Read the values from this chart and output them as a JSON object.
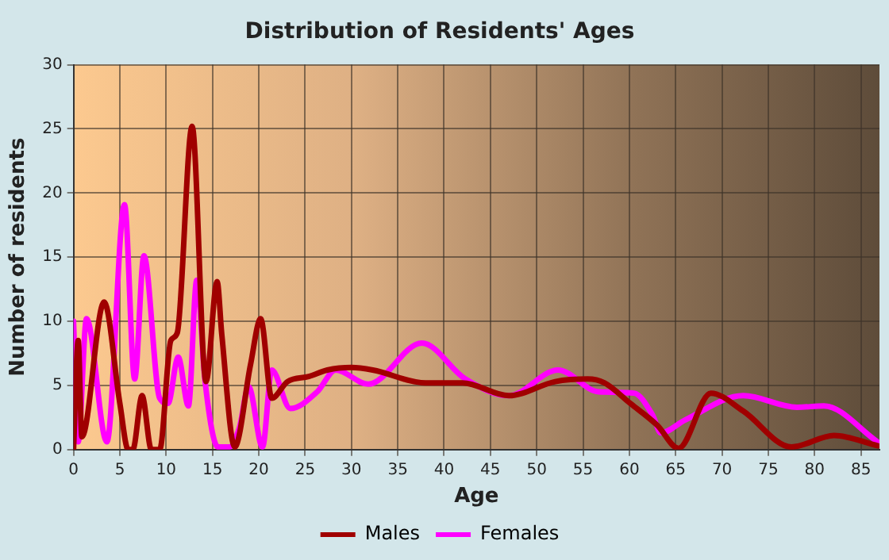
{
  "chart_data": {
    "type": "line",
    "title": "Distribution of Residents' Ages",
    "xlabel": "Age",
    "ylabel": "Number of residents",
    "xlim": [
      0,
      87
    ],
    "xticks": [
      0,
      5,
      10,
      15,
      20,
      25,
      30,
      35,
      40,
      45,
      50,
      55,
      60,
      65,
      70,
      75,
      80,
      85
    ],
    "ylim": [
      0,
      30
    ],
    "yticks": [
      0,
      5,
      10,
      15,
      20,
      25,
      30
    ],
    "grid": true,
    "legend": "bottom",
    "marker": "none",
    "line_style": "solid",
    "series": [
      {
        "name": "Males",
        "color": "#a00000",
        "x": [
          0,
          0.5,
          0.9,
          3.3,
          5,
          5.9,
          6.4,
          7.4,
          8.4,
          9.3,
          10.5,
          11.2,
          12.8,
          14.3,
          15.5,
          16,
          17.4,
          19.1,
          20.2,
          21.4,
          23.1,
          25.4,
          27.4,
          30,
          32.3,
          38,
          42,
          47,
          52,
          55.5,
          57.3,
          60.1,
          63,
          65.3,
          68.8,
          72.3,
          77.5,
          82.1,
          86.8
        ],
        "values": [
          0,
          8.5,
          1,
          11.5,
          3.6,
          0,
          0,
          4.2,
          0,
          0,
          8.5,
          9.1,
          25.2,
          5.3,
          13.1,
          9,
          0.2,
          6.6,
          10.2,
          4,
          5.3,
          5.7,
          6.2,
          6.4,
          6.2,
          5.2,
          5.2,
          4.2,
          5.3,
          5.5,
          5.2,
          3.6,
          1.9,
          0.1,
          4.4,
          3,
          0.2,
          1.1,
          0.3
        ]
      },
      {
        "name": "Females",
        "color": "#ff00ff",
        "x": [
          0,
          0.5,
          1.4,
          3.6,
          5.5,
          6.6,
          7.6,
          9.3,
          10.2,
          11.3,
          12.4,
          13.3,
          14.2,
          15.6,
          16.8,
          17.9,
          18.9,
          20.4,
          21.4,
          23.4,
          26.3,
          28.3,
          31.8,
          37.6,
          42.3,
          47,
          52.3,
          56.7,
          60.5,
          62.5,
          63.4,
          66,
          72.3,
          78.1,
          81,
          86.8
        ],
        "values": [
          10,
          0.6,
          10.2,
          0.6,
          19.1,
          5.5,
          15.1,
          4,
          3.6,
          7.2,
          3.4,
          13.2,
          5.3,
          0.2,
          0.2,
          1.7,
          4.9,
          0.2,
          6.2,
          3.2,
          4.5,
          6.2,
          5.1,
          8.3,
          5.5,
          4.2,
          6.2,
          4.5,
          4.4,
          2.7,
          1.3,
          2.3,
          4.2,
          3.3,
          3.4,
          0.6
        ]
      }
    ]
  }
}
